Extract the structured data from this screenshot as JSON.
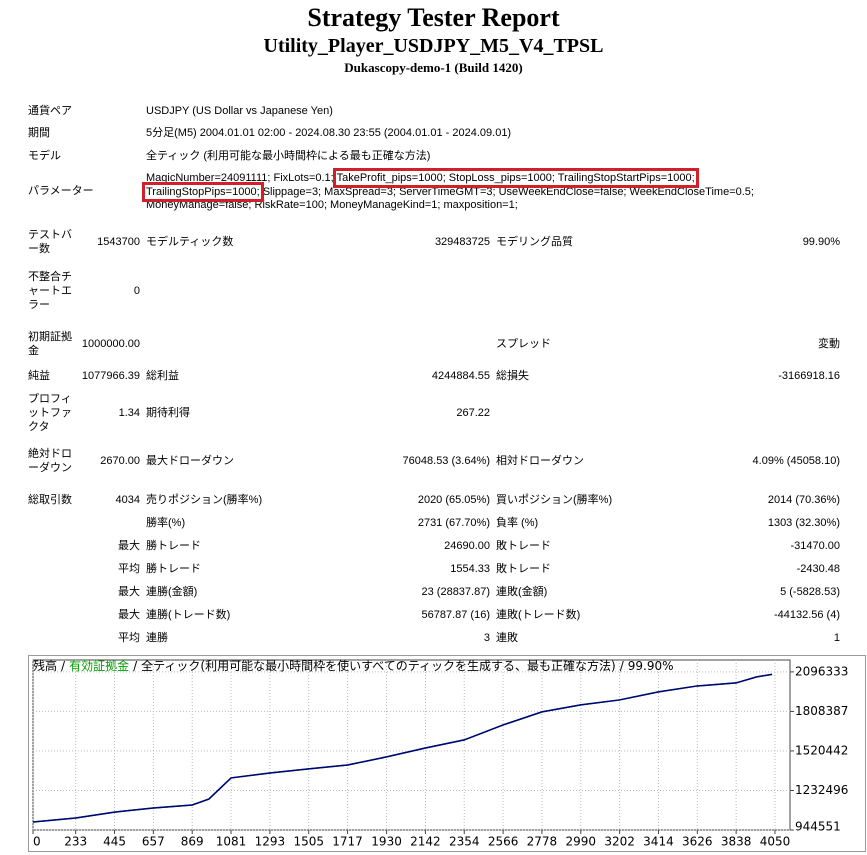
{
  "header": {
    "title": "Strategy Tester Report",
    "subtitle": "Utility_Player_USDJPY_M5_V4_TPSL",
    "server": "Dukascopy-demo-1 (Build 1420)"
  },
  "info": [
    {
      "label": "通貨ペア",
      "value": "USDJPY (US Dollar vs Japanese Yen)"
    },
    {
      "label": "期間",
      "value": "5分足(M5) 2004.01.01 02:00 - 2024.08.30 23:55 (2004.01.01 - 2024.09.01)"
    },
    {
      "label": "モデル",
      "value": "全ティック (利用可能な最小時間枠による最も正確な方法)"
    }
  ],
  "parameters": {
    "label": "パラメーター",
    "before": "MagicNumber=24091111; FixLots=0.1;",
    "highlighted": "TakeProfit_pips=1000; StopLoss_pips=1000; TrailingStopStartPips=1000; TrailingStopPips=1000;",
    "after": "Slippage=3; MaxSpread=3; ServerTimeGMT=3; UseWeekEndClose=false; WeekEndCloseTime=0.5; MoneyManage=false; RiskRate=100; MoneyManageKind=1; maxposition=1;"
  },
  "stats": [
    {
      "label1": "テストバー数",
      "value1": "1543700",
      "label2": "モデルティック数",
      "value2": "329483725",
      "label3": "モデリング品質",
      "value3": "99.90%"
    },
    {
      "label1": "不整合チャートエラー",
      "value1": "0"
    },
    {
      "label1": "初期証拠金",
      "value1": "1000000.00",
      "label3": "スプレッド",
      "value3": "変動"
    },
    {
      "label1": "純益",
      "value1": "1077966.39",
      "label2": "総利益",
      "value2": "4244884.55",
      "label3": "総損失",
      "value3": "-3166918.16"
    },
    {
      "label1": "プロフィットファクタ",
      "value1": "1.34",
      "label2": "期待利得",
      "value2": "267.22"
    },
    {
      "label1": "絶対ドローダウン",
      "value1": "2670.00",
      "label2": "最大ドローダウン",
      "value2": "76048.53 (3.64%)",
      "label3": "相対ドローダウン",
      "value3": "4.09% (45058.10)"
    },
    {
      "label1": "総取引数",
      "value1": "4034",
      "label2": "売りポジション(勝率%)",
      "value2": "2020 (65.05%)",
      "label3": "買いポジション(勝率%)",
      "value3": "2014 (70.36%)"
    },
    {
      "label2": "勝率(%)",
      "value2": "2731 (67.70%)",
      "label3": "負率 (%)",
      "value3": "1303 (32.30%)"
    },
    {
      "value1": "最大",
      "label2": "勝トレード",
      "value2": "24690.00",
      "label3": "敗トレード",
      "value3": "-31470.00"
    },
    {
      "value1": "平均",
      "label2": "勝トレード",
      "value2": "1554.33",
      "label3": "敗トレード",
      "value3": "-2430.48"
    },
    {
      "value1": "最大",
      "label2": "連勝(金額)",
      "value2": "23 (28837.87)",
      "label3": "連敗(金額)",
      "value3": "5 (-5828.53)"
    },
    {
      "value1": "最大",
      "label2": "連勝(トレード数)",
      "value2": "56787.87 (16)",
      "label3": "連敗(トレード数)",
      "value3": "-44132.56 (4)"
    },
    {
      "value1": "平均",
      "label2": "連勝",
      "value2": "3",
      "label3": "連敗",
      "value3": "1"
    }
  ],
  "chart_data": {
    "type": "line",
    "separator": "/",
    "model": "全ティック(利用可能な最小時間枠を使いすべてのティックを生成する、最も正確な方法)",
    "quality": "99.90%",
    "x": [
      0,
      233,
      445,
      657,
      869,
      960,
      1081,
      1293,
      1505,
      1717,
      1930,
      2142,
      2354,
      2566,
      2778,
      2990,
      3202,
      3414,
      3626,
      3838,
      3950,
      4034
    ],
    "series": [
      {
        "name": "有効証拠金",
        "color": "#00a000",
        "values": [
          1003000,
          1032000,
          1075000,
          1105000,
          1127000,
          1170000,
          1324000,
          1360000,
          1390000,
          1418000,
          1477000,
          1542000,
          1601000,
          1710000,
          1805000,
          1856000,
          1892000,
          1951000,
          1994000,
          2016000,
          2060000,
          2078000
        ]
      },
      {
        "name": "残高",
        "color": "#00007f",
        "values": [
          1003000,
          1032000,
          1075000,
          1105000,
          1127000,
          1170000,
          1324000,
          1360000,
          1390000,
          1418000,
          1477000,
          1542000,
          1601000,
          1710000,
          1805000,
          1856000,
          1892000,
          1951000,
          1994000,
          2016000,
          2060000,
          2078000
        ]
      }
    ],
    "xlim": [
      0,
      4132
    ],
    "ylim": [
      944551,
      2183000
    ],
    "xticks": [
      0,
      233,
      445,
      657,
      869,
      1081,
      1293,
      1505,
      1717,
      1930,
      2142,
      2354,
      2566,
      2778,
      2990,
      3202,
      3414,
      3626,
      3838,
      4050
    ],
    "yticks": [
      944551,
      1232496,
      1520442,
      1808387,
      2096333
    ],
    "grid": true
  }
}
